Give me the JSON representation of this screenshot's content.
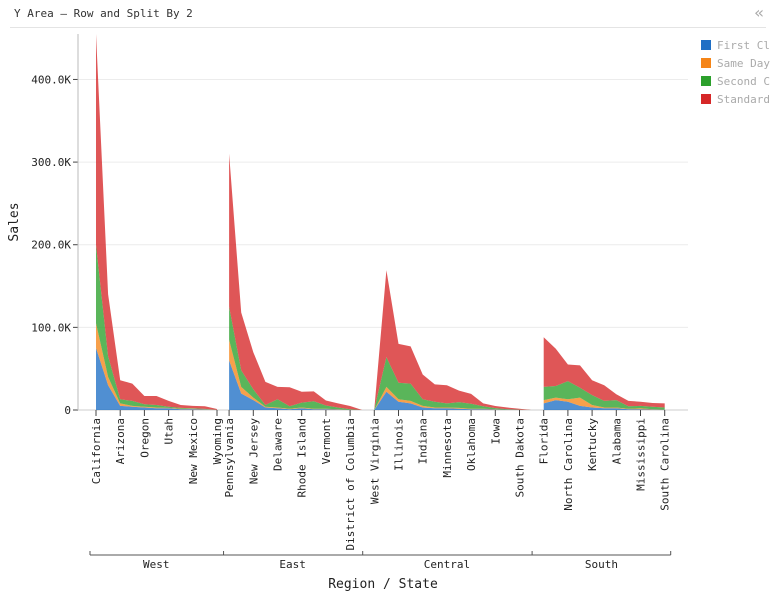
{
  "header": {
    "title": "Y Area — Row and Split By 2",
    "collapse_glyph": "«"
  },
  "legend": {
    "items": [
      {
        "label": "First Cl",
        "color": "#1f6fc5"
      },
      {
        "label": "Same Day",
        "color": "#f58518"
      },
      {
        "label": "Second C",
        "color": "#2ca02c"
      },
      {
        "label": "Standard",
        "color": "#d62728"
      }
    ]
  },
  "chart_data": {
    "type": "area",
    "stacked": true,
    "title": "Y Area — Row and Split By 2",
    "xlabel": "Region / State",
    "ylabel": "Sales",
    "ylim": [
      0,
      455000
    ],
    "yticks": [
      0,
      100000,
      200000,
      300000,
      400000
    ],
    "ytick_labels": [
      "0",
      "100.0K",
      "200.0K",
      "300.0K",
      "400.0K"
    ],
    "grid": true,
    "legend_position": "top-right",
    "groups": [
      {
        "name": "West",
        "states": [
          "California",
          "Arizona",
          "Oregon",
          "Utah",
          "New Mexico",
          "Wyoming"
        ]
      },
      {
        "name": "East",
        "states": [
          "Pennsylvania",
          "New Jersey",
          "Delaware",
          "Rhode Island",
          "Vermont",
          "District of Columbia"
        ]
      },
      {
        "name": "Central",
        "states": [
          "West Virginia",
          "Illinois",
          "Indiana",
          "Minnesota",
          "Oklahoma",
          "Iowa",
          "South Dakota"
        ]
      },
      {
        "name": "South",
        "states": [
          "Florida",
          "North Carolina",
          "Kentucky",
          "Alabama",
          "Mississippi",
          "South Carolina"
        ]
      }
    ],
    "x": [
      "California",
      "",
      "Arizona",
      "",
      "Oregon",
      "",
      "Utah",
      "",
      "New Mexico",
      "",
      "Wyoming",
      "Pennsylvania",
      "",
      "New Jersey",
      "",
      "Delaware",
      "",
      "Rhode Island",
      "",
      "Vermont",
      "",
      "District of Columbia",
      "",
      "West Virginia",
      "",
      "Illinois",
      "",
      "Indiana",
      "",
      "Minnesota",
      "",
      "Oklahoma",
      "",
      "Iowa",
      "",
      "South Dakota",
      "",
      "Florida",
      "",
      "North Carolina",
      "",
      "Kentucky",
      "",
      "Alabama",
      "",
      "Mississippi",
      "",
      "South Carolina"
    ],
    "segments": [
      [
        0,
        10
      ],
      [
        11,
        22
      ],
      [
        23,
        36
      ],
      [
        37,
        47
      ]
    ],
    "series": [
      {
        "name": "First Cl",
        "values": [
          75000,
          30000,
          5000,
          4000,
          3000,
          2000,
          2000,
          1000,
          1000,
          500,
          100,
          60000,
          20000,
          12000,
          3000,
          2000,
          1000,
          2000,
          1000,
          1000,
          500,
          100,
          0,
          0,
          22000,
          10000,
          8000,
          3000,
          2000,
          2000,
          1500,
          1000,
          1000,
          500,
          200,
          100,
          0,
          8000,
          12000,
          10000,
          5000,
          3000,
          2000,
          2000,
          1000,
          1000,
          500,
          300
        ]
      },
      {
        "name": "Same Day",
        "values": [
          30000,
          10000,
          3000,
          1000,
          1000,
          1000,
          500,
          500,
          500,
          300,
          100,
          25000,
          8000,
          3000,
          1000,
          1000,
          500,
          1000,
          500,
          500,
          500,
          0,
          0,
          0,
          6000,
          3000,
          3000,
          2000,
          1000,
          1000,
          1000,
          500,
          500,
          300,
          100,
          100,
          0,
          4000,
          3000,
          3000,
          10000,
          3000,
          1000,
          1000,
          500,
          1000,
          500,
          200
        ]
      },
      {
        "name": "Second C",
        "values": [
          95000,
          25000,
          5000,
          6000,
          3000,
          3000,
          1500,
          1000,
          500,
          500,
          100,
          40000,
          20000,
          10000,
          2000,
          10000,
          3000,
          6000,
          9000,
          4000,
          2000,
          700,
          0,
          1000,
          36000,
          20000,
          21000,
          8000,
          7000,
          5000,
          7000,
          6000,
          3000,
          1500,
          700,
          300,
          0,
          16000,
          14000,
          22000,
          12000,
          12000,
          8000,
          9000,
          3000,
          3000,
          3000,
          2500
        ]
      },
      {
        "name": "Standard",
        "values": [
          255000,
          75000,
          23000,
          21000,
          10000,
          11000,
          7000,
          3500,
          3000,
          3200,
          900,
          185000,
          70000,
          45000,
          28000,
          15000,
          23000,
          13000,
          12000,
          6000,
          5000,
          4000,
          0,
          0,
          105000,
          47000,
          45000,
          30000,
          21000,
          22000,
          14000,
          12000,
          3500,
          2500,
          2000,
          1000,
          0,
          60000,
          45000,
          20000,
          27000,
          18000,
          19000,
          7000,
          6500,
          5000,
          4500,
          5000
        ]
      }
    ]
  }
}
